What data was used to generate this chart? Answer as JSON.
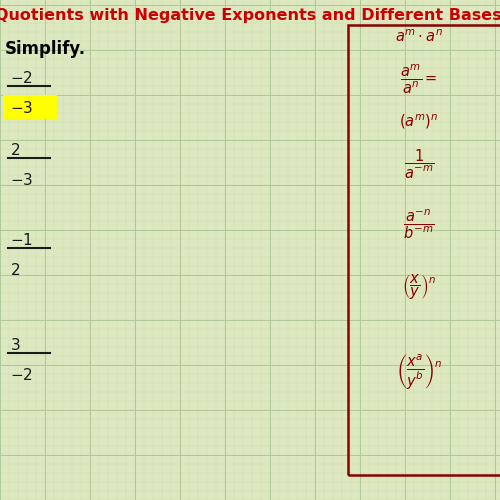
{
  "bg_color": "#dde8c0",
  "grid_color_major": "#b0c898",
  "grid_color_minor": "#ccdaaa",
  "title": "Quotients with Negative Exponents and Different Bases Ex",
  "title_color": "#cc0000",
  "title_fontsize": 11.5,
  "instruction": "Simplify.",
  "instruction_color": "#000000",
  "instruction_fontsize": 12,
  "math_color": "#8b0000",
  "fraction_color": "#1a1a1a",
  "highlight_color": "#ffff00",
  "box_color": "#8b0000",
  "fig_width": 5.0,
  "fig_height": 5.0,
  "dpi": 100
}
